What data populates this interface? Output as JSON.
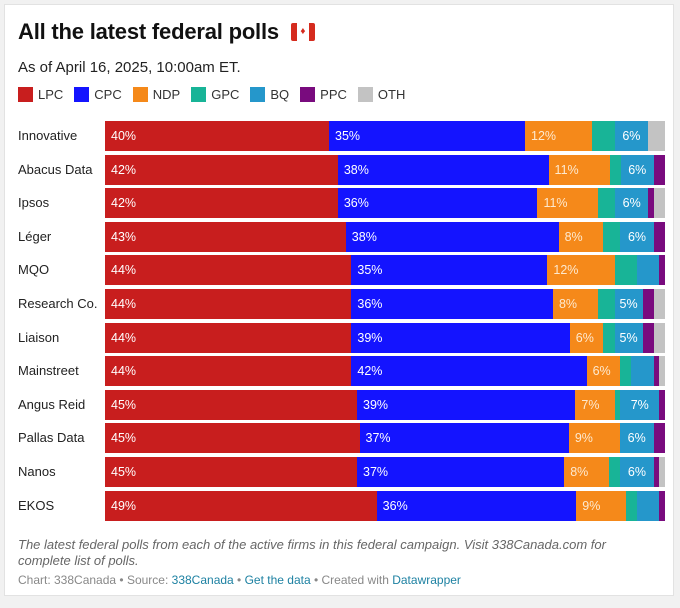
{
  "header": {
    "title": "All the latest federal polls",
    "flag_icon": "canada-flag",
    "subtitle": "As of April 16, 2025, 10:00am ET."
  },
  "legend": [
    {
      "key": "LPC",
      "label": "LPC",
      "color": "#c81e1e"
    },
    {
      "key": "CPC",
      "label": "CPC",
      "color": "#1414ff"
    },
    {
      "key": "NDP",
      "label": "NDP",
      "color": "#f5891a"
    },
    {
      "key": "GPC",
      "label": "GPC",
      "color": "#18b497"
    },
    {
      "key": "BQ",
      "label": "BQ",
      "color": "#2597cb"
    },
    {
      "key": "PPC",
      "label": "PPC",
      "color": "#790b7e"
    },
    {
      "key": "OTH",
      "label": "OTH",
      "color": "#c3c3c3"
    }
  ],
  "chart_data": {
    "type": "bar",
    "orientation": "horizontal",
    "stacked": true,
    "title": "All the latest federal polls",
    "subtitle": "As of April 16, 2025, 10:00am ET.",
    "xlabel": "",
    "ylabel": "",
    "xlim": [
      0,
      100
    ],
    "grid": false,
    "legend_position": "top-left",
    "categories": [
      "Innovative",
      "Abacus Data",
      "Ipsos",
      "Léger",
      "MQO",
      "Research Co.",
      "Liaison",
      "Mainstreet",
      "Angus Reid",
      "Pallas Data",
      "Nanos",
      "EKOS"
    ],
    "series": [
      {
        "name": "LPC",
        "values": [
          40,
          42,
          42,
          43,
          44,
          44,
          44,
          44,
          45,
          45,
          45,
          49
        ]
      },
      {
        "name": "CPC",
        "values": [
          35,
          38,
          36,
          38,
          35,
          36,
          39,
          42,
          39,
          37,
          37,
          36
        ]
      },
      {
        "name": "NDP",
        "values": [
          12,
          11,
          11,
          8,
          12,
          8,
          6,
          6,
          7,
          9,
          8,
          9
        ]
      },
      {
        "name": "GPC",
        "values": [
          4,
          2,
          3,
          3,
          4,
          3,
          2,
          2,
          1,
          0,
          2,
          2
        ]
      },
      {
        "name": "BQ",
        "values": [
          6,
          6,
          6,
          6,
          4,
          5,
          5,
          4,
          7,
          6,
          6,
          4
        ]
      },
      {
        "name": "PPC",
        "values": [
          0,
          2,
          1,
          2,
          1,
          2,
          2,
          1,
          1,
          2,
          1,
          1
        ]
      },
      {
        "name": "OTH",
        "values": [
          3,
          0,
          2,
          0,
          0,
          2,
          2,
          1,
          0,
          0,
          1,
          0
        ]
      }
    ],
    "data_labels": [
      {
        "LPC": "40%",
        "CPC": "35%",
        "NDP": "12%",
        "BQ": "6%"
      },
      {
        "LPC": "42%",
        "CPC": "38%",
        "NDP": "11%",
        "BQ": "6%"
      },
      {
        "LPC": "42%",
        "CPC": "36%",
        "NDP": "11%",
        "BQ": "6%"
      },
      {
        "LPC": "43%",
        "CPC": "38%",
        "NDP": "8%",
        "BQ": "6%"
      },
      {
        "LPC": "44%",
        "CPC": "35%",
        "NDP": "12%"
      },
      {
        "LPC": "44%",
        "CPC": "36%",
        "NDP": "8%",
        "BQ": "5%"
      },
      {
        "LPC": "44%",
        "CPC": "39%",
        "NDP": "6%",
        "BQ": "5%"
      },
      {
        "LPC": "44%",
        "CPC": "42%",
        "NDP": "6%"
      },
      {
        "LPC": "45%",
        "CPC": "39%",
        "NDP": "7%",
        "BQ": "7%"
      },
      {
        "LPC": "45%",
        "CPC": "37%",
        "NDP": "9%",
        "BQ": "6%"
      },
      {
        "LPC": "45%",
        "CPC": "37%",
        "NDP": "8%",
        "BQ": "6%"
      },
      {
        "LPC": "49%",
        "CPC": "36%",
        "NDP": "9%"
      }
    ]
  },
  "footer": {
    "notes": "The latest federal polls from each of the active firms in this federal campaign. Visit 338Canada.com for complete list of polls.",
    "chart_credit": "Chart: 338Canada",
    "separator": " • ",
    "source_prefix": "Source: ",
    "source_link": "338Canada",
    "get_data_link": "Get the data",
    "created_with_prefix": "Created with ",
    "datawrapper_link": "Datawrapper"
  }
}
